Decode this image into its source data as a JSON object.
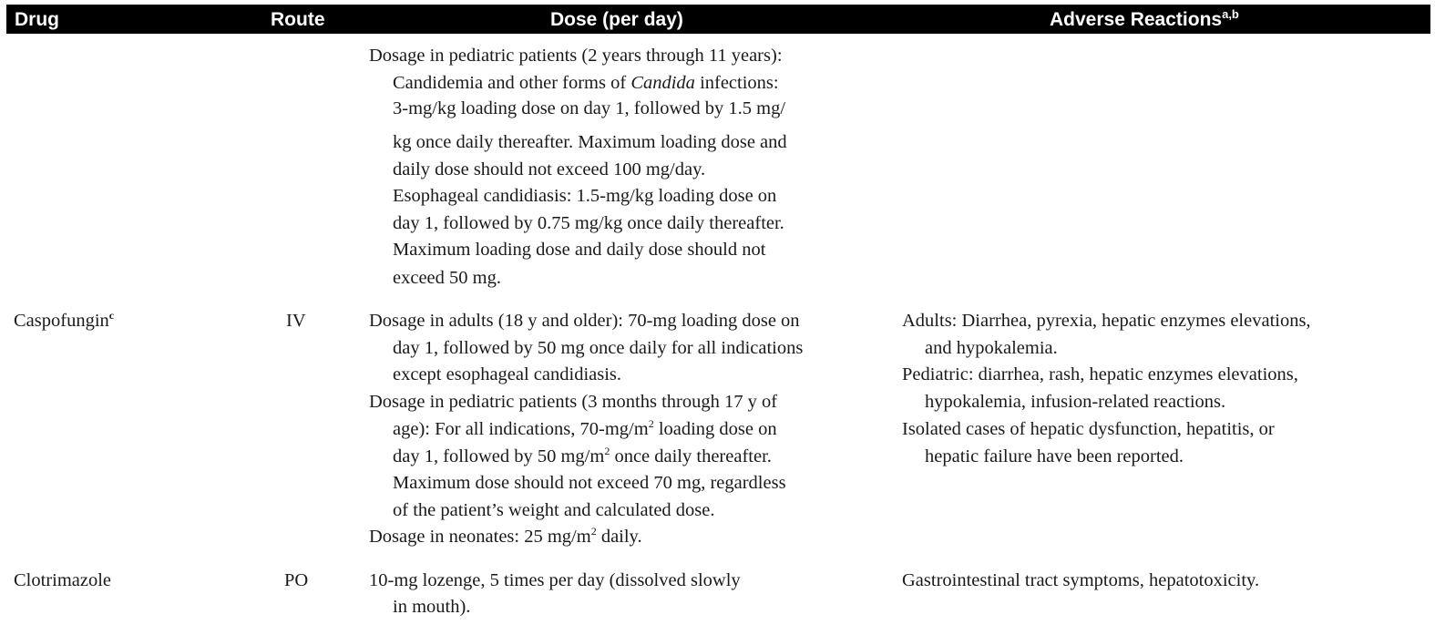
{
  "header": {
    "drug": "Drug",
    "route": "Route",
    "dose": "Dose (per day)",
    "adverse": "Adverse Reactions",
    "adverse_sup": "a,b"
  },
  "rows": [
    {
      "drug": "",
      "route": "",
      "dose_lines": [
        "Dosage in pediatric patients (2 years through 11 years):",
        "Candidemia and other forms of ",
        "Candida",
        " infections:",
        "3-mg/kg loading dose on day 1, followed by 1.5 mg/",
        "kg once daily thereafter.  Maximum loading dose and",
        "daily dose should not exceed 100 mg/day.",
        "Esophageal candidiasis: 1.5-mg/kg loading dose on",
        "day 1, followed by 0.75 mg/kg once daily thereafter.",
        "Maximum loading dose and daily dose should not",
        "exceed 50 mg."
      ]
    },
    {
      "drug": "Caspofungin",
      "drug_sup": "c",
      "route": "IV",
      "dose_lines": [
        "Dosage in adults (18 y and older): 70-mg loading dose on",
        "day 1, followed by 50 mg once daily for all indications",
        "except esophageal candidiasis.",
        "Dosage in pediatric patients (3 months through 17 y of",
        "age): For all indications, 70-mg/m",
        " loading dose on",
        "day 1, followed by 50 mg/m",
        " once daily thereafter.",
        "Maximum dose should not exceed 70 mg, regardless",
        "of the patient’s weight and calculated dose.",
        "Dosage in neonates: 25 mg/m",
        " daily."
      ],
      "sq": "2",
      "adverse_lines": [
        "Adults: Diarrhea, pyrexia, hepatic enzymes elevations,",
        "and hypokalemia.",
        "Pediatric: diarrhea, rash, hepatic enzymes elevations,",
        "hypokalemia, infusion-related reactions.",
        "Isolated cases of hepatic dysfunction, hepatitis, or",
        "hepatic failure have been reported."
      ]
    },
    {
      "drug": "Clotrimazole",
      "route": "PO",
      "dose_lines": [
        "10-mg lozenge, 5 times per day (dissolved slowly",
        "in mouth)."
      ],
      "adverse_lines": [
        "Gastrointestinal tract symptoms, hepatotoxicity."
      ]
    }
  ]
}
